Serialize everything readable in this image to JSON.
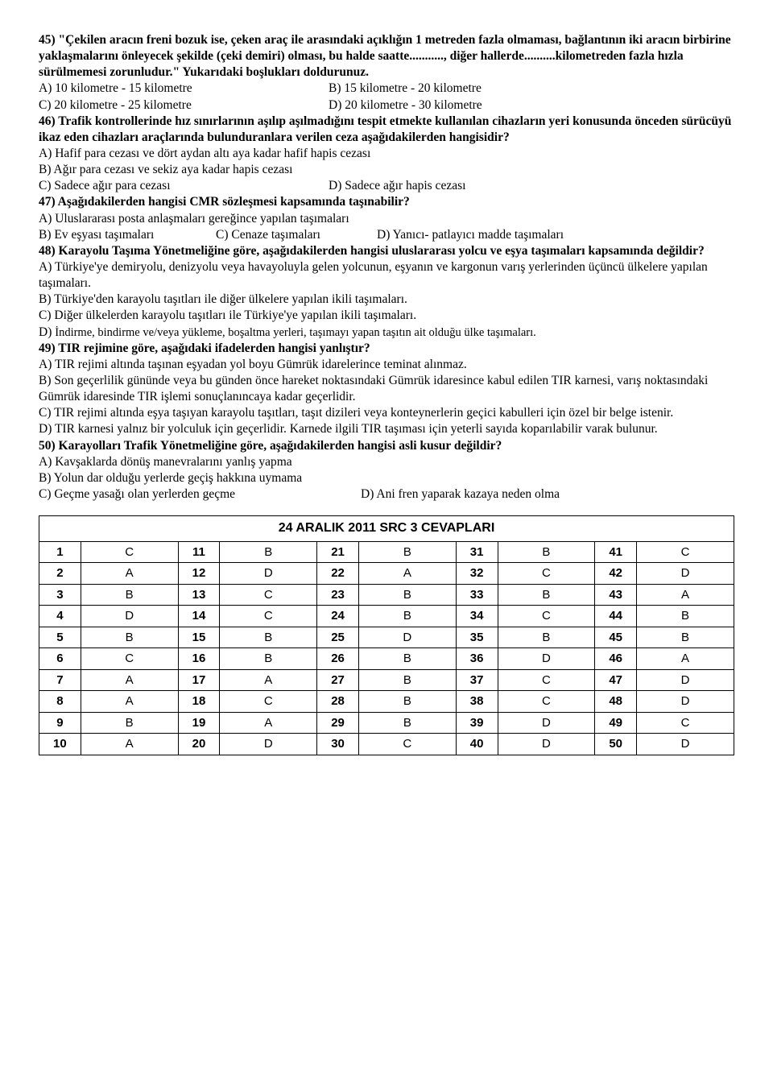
{
  "q45": {
    "stem1": "45) \"Çekilen aracın freni bozuk ise, çeken araç ile arasındaki açıklığın 1 metreden fazla olmaması, bağlantının iki aracın birbirine yaklaşmalarını önleyecek şekilde (çeki demiri) olması, bu halde saatte..........., diğer hallerde..........kilometreden fazla hızla sürülmemesi zorunludur.\" Yukarıdaki boşlukları doldurunuz.",
    "a": "A) 10 kilometre - 15 kilometre",
    "b": "B) 15 kilometre - 20 kilometre",
    "c": "C) 20 kilometre - 25 kilometre",
    "d": "D) 20 kilometre - 30 kilometre"
  },
  "q46": {
    "stem": "46) Trafik kontrollerinde hız sınırlarının aşılıp aşılmadığını tespit etmekte kullanılan cihazların yeri konusunda önceden sürücüyü ikaz eden cihazları araçlarında bulunduranlara verilen ceza aşağıdakilerden hangisidir?",
    "a": "A) Hafif para cezası ve dört aydan altı aya kadar hafif hapis cezası",
    "b": "B) Ağır para cezası ve sekiz aya kadar hapis cezası",
    "c": "C) Sadece ağır para cezası",
    "d": "D) Sadece ağır hapis cezası"
  },
  "q47": {
    "stem": "47) Aşağıdakilerden hangisi CMR sözleşmesi kapsamında taşınabilir?",
    "a": "A) Uluslararası posta anlaşmaları gereğince yapılan taşımaları",
    "b": "B) Ev eşyası taşımaları",
    "c": "C) Cenaze taşımaları",
    "d": "D) Yanıcı- patlayıcı madde taşımaları"
  },
  "q48": {
    "stem": "48) Karayolu Taşıma Yönetmeliğine göre, aşağıdakilerden hangisi uluslararası yolcu ve eşya taşımaları kapsamında değildir?",
    "a": "A) Türkiye'ye demiryolu, denizyolu veya havayoluyla gelen yolcunun, eşyanın ve kargonun varış yerlerinden üçüncü ülkelere yapılan taşımaları.",
    "b": "B) Türkiye'den karayolu taşıtları ile diğer ülkelere yapılan ikili taşımaları.",
    "c": "C) Diğer ülkelerden karayolu taşıtları ile Türkiye'ye yapılan ikili taşımaları.",
    "d_prefix": "D) ",
    "d_rest": "İndirme, bindirme ve/veya yükleme, boşaltma yerleri, taşımayı yapan taşıtın ait olduğu ülke taşımaları."
  },
  "q49": {
    "stem": "49) TIR rejimine göre, aşağıdaki ifadelerden hangisi yanlıştır?",
    "a": "A) TIR rejimi altında taşınan eşyadan yol boyu Gümrük idarelerince teminat alınmaz.",
    "b": "B) Son geçerlilik gününde veya bu günden önce hareket noktasındaki Gümrük idaresince kabul edilen TIR karnesi, varış noktasındaki Gümrük idaresinde TIR işlemi sonuçlanıncaya kadar geçerlidir.",
    "c": "C) TIR rejimi altında eşya taşıyan karayolu taşıtları, taşıt dizileri veya konteynerlerin geçici kabulleri için özel bir belge istenir.",
    "d": "D) TIR karnesi yalnız bir yolculuk için geçerlidir. Karnede ilgili TIR taşıması için yeterli sayıda koparılabilir varak bulunur."
  },
  "q50": {
    "stem": "50) Karayolları Trafik Yönetmeliğine göre, aşağıdakilerden hangisi asli kusur değildir?",
    "a": "A) Kavşaklarda dönüş manevralarını yanlış yapma",
    "b": "B) Yolun dar olduğu yerlerde geçiş hakkına uymama",
    "c": "C) Geçme yasağı olan yerlerden geçme",
    "d": "D) Ani fren yaparak kazaya neden olma"
  },
  "answers": {
    "title": "24 ARALIK 2011 SRC 3 CEVAPLARI",
    "rows": [
      [
        "1",
        "C",
        "11",
        "B",
        "21",
        "B",
        "31",
        "B",
        "41",
        "C"
      ],
      [
        "2",
        "A",
        "12",
        "D",
        "22",
        "A",
        "32",
        "C",
        "42",
        "D"
      ],
      [
        "3",
        "B",
        "13",
        "C",
        "23",
        "B",
        "33",
        "B",
        "43",
        "A"
      ],
      [
        "4",
        "D",
        "14",
        "C",
        "24",
        "B",
        "34",
        "C",
        "44",
        "B"
      ],
      [
        "5",
        "B",
        "15",
        "B",
        "25",
        "D",
        "35",
        "B",
        "45",
        "B"
      ],
      [
        "6",
        "C",
        "16",
        "B",
        "26",
        "B",
        "36",
        "D",
        "46",
        "A"
      ],
      [
        "7",
        "A",
        "17",
        "A",
        "27",
        "B",
        "37",
        "C",
        "47",
        "D"
      ],
      [
        "8",
        "A",
        "18",
        "C",
        "28",
        "B",
        "38",
        "C",
        "48",
        "D"
      ],
      [
        "9",
        "B",
        "19",
        "A",
        "29",
        "B",
        "39",
        "D",
        "49",
        "C"
      ],
      [
        "10",
        "A",
        "20",
        "D",
        "30",
        "C",
        "40",
        "D",
        "50",
        "D"
      ]
    ]
  }
}
